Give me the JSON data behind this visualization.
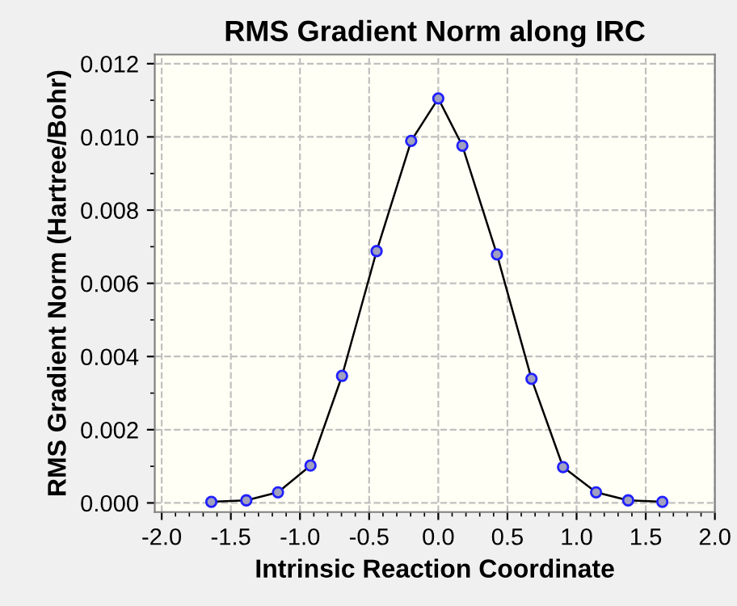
{
  "chart_data": {
    "type": "line",
    "title": "RMS Gradient Norm along IRC",
    "xlabel": "Intrinsic Reaction Coordinate",
    "ylabel": "RMS Gradient Norm (Hartree/Bohr)",
    "series": [
      {
        "color": "#000000",
        "x": [
          -1.641,
          -1.388,
          -1.159,
          -0.924,
          -0.696,
          -0.446,
          -0.196,
          0.0,
          0.174,
          0.424,
          0.674,
          0.902,
          1.141,
          1.373,
          1.62
        ],
        "values": [
          3e-05,
          7e-05,
          0.00029,
          0.00102,
          0.00347,
          0.00688,
          0.00989,
          0.01105,
          0.00976,
          0.00679,
          0.00339,
          0.00098,
          0.00029,
          7e-05,
          3e-05
        ]
      }
    ],
    "marker": "circle",
    "line_style": "solid",
    "grid": true,
    "xlim": [
      -2.05,
      2.0
    ],
    "ylim": [
      -0.00025,
      0.01225
    ],
    "xticks": [
      {
        "value": -2,
        "label": "-2.0"
      },
      {
        "value": -1.5,
        "label": "-1.5"
      },
      {
        "value": -1,
        "label": "-1.0"
      },
      {
        "value": -0.5,
        "label": "-0.5"
      },
      {
        "value": 0,
        "label": "0.0"
      },
      {
        "value": 0.5,
        "label": "0.5"
      },
      {
        "value": 1,
        "label": "1.0"
      },
      {
        "value": 1.5,
        "label": "1.5"
      },
      {
        "value": 2,
        "label": "2.0"
      }
    ],
    "yticks": [
      {
        "value": 0,
        "label": "0.000"
      },
      {
        "value": 0.002,
        "label": "0.002"
      },
      {
        "value": 0.004,
        "label": "0.004"
      },
      {
        "value": 0.006,
        "label": "0.006"
      },
      {
        "value": 0.008,
        "label": "0.008"
      },
      {
        "value": 0.01,
        "label": "0.010"
      },
      {
        "value": 0.012,
        "label": "0.012"
      }
    ]
  }
}
